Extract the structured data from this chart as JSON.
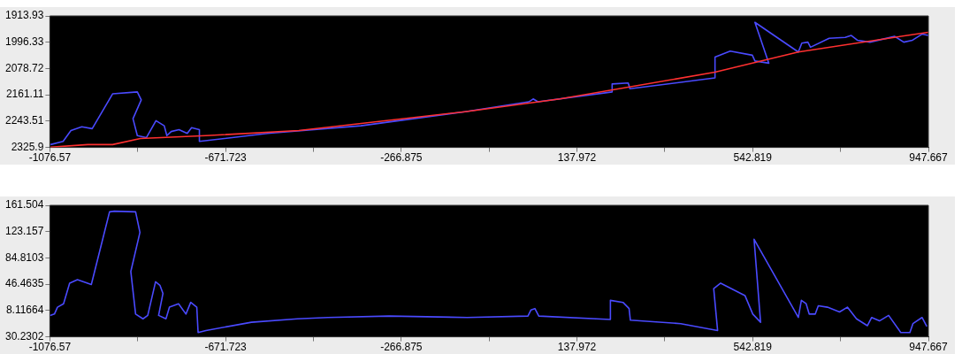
{
  "chart_data": [
    {
      "type": "line",
      "xlim": [
        -1076.57,
        947.667
      ],
      "ylim": [
        2325.9,
        1913.93
      ],
      "xticks": [
        -1076.57,
        {
          "value": -874.15,
          "label": null
        },
        -671.723,
        {
          "value": -469.3,
          "label": null
        },
        -266.875,
        {
          "value": -64.45,
          "label": null
        },
        137.972,
        {
          "value": 340.4,
          "label": null
        },
        542.819,
        {
          "value": 745.24,
          "label": null
        },
        947.667
      ],
      "yticks": [
        1913.93,
        1996.33,
        2078.72,
        2161.11,
        2243.51,
        2325.9
      ],
      "series": [
        {
          "color": "#4a4aff",
          "x": [
            -1075,
            -1046,
            -1028,
            -1003,
            -979,
            -932,
            -875,
            -866,
            -885,
            -875,
            -854,
            -832,
            -813,
            -807,
            -797,
            -779,
            -760,
            -750,
            -732,
            -732,
            -575,
            -360,
            -120,
            27,
            37,
            48,
            219,
            219,
            256,
            260,
            456,
            456,
            491,
            542,
            548,
            580,
            548,
            648,
            656,
            670,
            676,
            719,
            756,
            770,
            784,
            813,
            870,
            891,
            911,
            933,
            947
          ],
          "values": [
            2317,
            2307,
            2273,
            2261,
            2267,
            2158,
            2152,
            2177,
            2236,
            2289,
            2295,
            2242,
            2258,
            2289,
            2276,
            2270,
            2282,
            2264,
            2270,
            2307,
            2282,
            2258,
            2214,
            2183,
            2174,
            2183,
            2152,
            2127,
            2124,
            2142,
            2108,
            2043,
            2024,
            2037,
            2055,
            2062,
            1934,
            2027,
            1999,
            1996,
            2012,
            1984,
            1981,
            1975,
            1990,
            1996,
            1978,
            1996,
            1990,
            1971,
            1975
          ]
        },
        {
          "color": "#ff3030",
          "x": [
            -1075,
            -989,
            -932,
            -868,
            -717,
            -503,
            -120,
            99,
            456,
            648,
            947
          ],
          "values": [
            2325,
            2317,
            2317,
            2298,
            2289,
            2273,
            2214,
            2174,
            2090,
            2027,
            1965
          ]
        }
      ]
    },
    {
      "type": "line",
      "xlim": [
        -1076.57,
        947.667
      ],
      "ylim": [
        -30.2302,
        161.504
      ],
      "xticks": [
        -1076.57,
        {
          "value": -874.15,
          "label": null
        },
        -671.723,
        {
          "value": -469.3,
          "label": null
        },
        -266.875,
        {
          "value": -64.45,
          "label": null
        },
        137.972,
        {
          "value": 340.4,
          "label": null
        },
        542.819,
        {
          "value": 745.24,
          "label": null
        },
        947.667
      ],
      "yticks": [
        {
          "value": -30.2302,
          "label": "30.2302"
        },
        8.11664,
        46.4635,
        84.8103,
        123.157,
        161.504
      ],
      "series": [
        {
          "color": "#4a4aff",
          "x": [
            -1076,
            -1066,
            -1059,
            -1045,
            -1031,
            -1013,
            -981,
            -939,
            -928,
            -879,
            -869,
            -890,
            -879,
            -862,
            -851,
            -833,
            -823,
            -816,
            -826,
            -809,
            -801,
            -780,
            -763,
            -752,
            -738,
            -735,
            -717,
            -612,
            -506,
            -436,
            -295,
            -115,
            25,
            32,
            41,
            50,
            215,
            215,
            244,
            258,
            261,
            377,
            462,
            453,
            469,
            525,
            543,
            561,
            546,
            648,
            655,
            666,
            673,
            687,
            694,
            715,
            743,
            761,
            782,
            807,
            817,
            835,
            856,
            884,
            905,
            912,
            933,
            944
          ],
          "values": [
            1,
            3,
            13,
            18,
            48,
            53,
            46,
            152,
            153,
            152,
            122,
            65,
            3,
            -4,
            1,
            50,
            45,
            33,
            1,
            -4,
            13,
            18,
            3,
            20,
            13,
            -24,
            -21,
            -9,
            -4,
            -2,
            0,
            -2,
            0,
            9,
            11,
            0,
            -5,
            23,
            20,
            11,
            -6,
            -11,
            -21,
            40,
            48,
            30,
            3,
            -9,
            112,
            -2,
            23,
            18,
            3,
            3,
            15,
            13,
            6,
            13,
            -4,
            -14,
            -2,
            -7,
            1,
            -24,
            -24,
            -11,
            -2,
            -15
          ]
        }
      ]
    }
  ]
}
